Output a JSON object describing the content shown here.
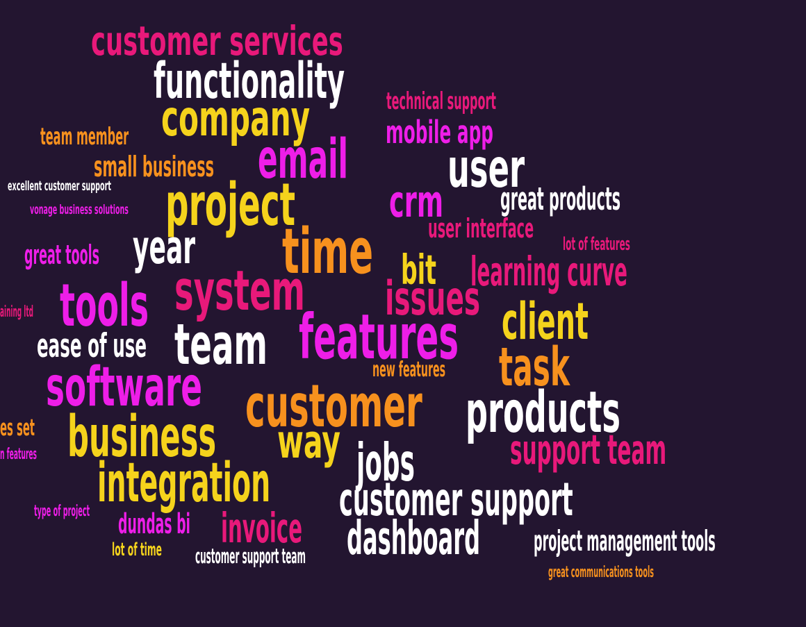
{
  "palette": {
    "background": "#231530",
    "crimson": "#e8197a",
    "white": "#ffffff",
    "yellow": "#f5d31c",
    "orange": "#f7911e",
    "magenta": "#ee1ee8"
  },
  "words": [
    {
      "text": "customer services",
      "color": "crimson"
    },
    {
      "text": "functionality",
      "color": "white"
    },
    {
      "text": "company",
      "color": "yellow"
    },
    {
      "text": "technical support",
      "color": "crimson"
    },
    {
      "text": "mobile app",
      "color": "magenta"
    },
    {
      "text": "team member",
      "color": "orange"
    },
    {
      "text": "email",
      "color": "magenta"
    },
    {
      "text": "small business",
      "color": "orange"
    },
    {
      "text": "user",
      "color": "white"
    },
    {
      "text": "excellent customer support",
      "color": "white"
    },
    {
      "text": "project",
      "color": "yellow"
    },
    {
      "text": "crm",
      "color": "magenta"
    },
    {
      "text": "great products",
      "color": "white"
    },
    {
      "text": "vonage business solutions",
      "color": "magenta"
    },
    {
      "text": "user interface",
      "color": "crimson"
    },
    {
      "text": "lot of features",
      "color": "crimson"
    },
    {
      "text": "year",
      "color": "white"
    },
    {
      "text": "time",
      "color": "orange"
    },
    {
      "text": "great tools",
      "color": "magenta"
    },
    {
      "text": "bit",
      "color": "yellow"
    },
    {
      "text": "learning curve",
      "color": "crimson"
    },
    {
      "text": "system",
      "color": "crimson"
    },
    {
      "text": "tools",
      "color": "magenta"
    },
    {
      "text": "issues",
      "color": "crimson"
    },
    {
      "text": "aining ltd",
      "color": "crimson"
    },
    {
      "text": "client",
      "color": "yellow"
    },
    {
      "text": "features",
      "color": "magenta"
    },
    {
      "text": "team",
      "color": "white"
    },
    {
      "text": "ease of use",
      "color": "white"
    },
    {
      "text": "task",
      "color": "orange"
    },
    {
      "text": "new features",
      "color": "orange"
    },
    {
      "text": "software",
      "color": "magenta"
    },
    {
      "text": "customer",
      "color": "orange"
    },
    {
      "text": "products",
      "color": "white"
    },
    {
      "text": "es set",
      "color": "orange"
    },
    {
      "text": "business",
      "color": "yellow"
    },
    {
      "text": "way",
      "color": "yellow"
    },
    {
      "text": "support team",
      "color": "crimson"
    },
    {
      "text": "n features",
      "color": "magenta"
    },
    {
      "text": "jobs",
      "color": "white"
    },
    {
      "text": "integration",
      "color": "yellow"
    },
    {
      "text": "customer support",
      "color": "white"
    },
    {
      "text": "type of project",
      "color": "magenta"
    },
    {
      "text": "dundas bi",
      "color": "magenta"
    },
    {
      "text": "invoice",
      "color": "crimson"
    },
    {
      "text": "dashboard",
      "color": "white"
    },
    {
      "text": "project management tools",
      "color": "white"
    },
    {
      "text": "lot of time",
      "color": "yellow"
    },
    {
      "text": "customer support team",
      "color": "white"
    },
    {
      "text": "great communications tools",
      "color": "orange"
    }
  ]
}
